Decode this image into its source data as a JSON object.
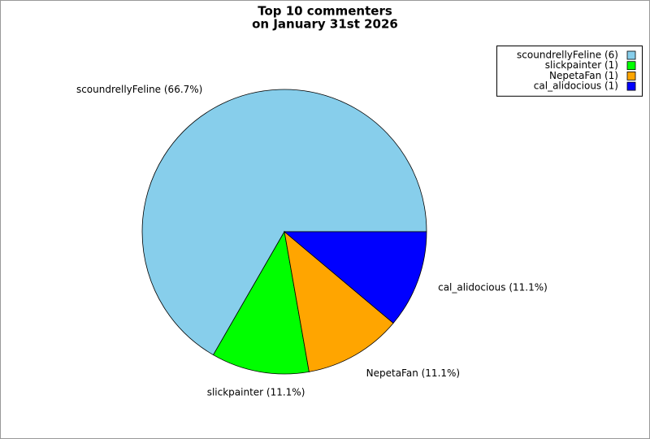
{
  "chart_data": {
    "type": "pie",
    "title": [
      "Top 10 commenters",
      "on January 31st 2026"
    ],
    "values": [
      6,
      1,
      1,
      1
    ],
    "value_labels": [
      "scoundrellyFeline (66.7%)",
      "slickpainter (11.1%)",
      "NepetaFan (11.1%)",
      "cal_alidocious (11.1%)"
    ],
    "legend_labels": [
      "scoundrellyFeline (6)",
      "slickpainter (1)",
      "NepetaFan (1)",
      "cal_alidocious (1)"
    ],
    "colors": [
      "#87ceeb",
      "#00ff00",
      "#ffa500",
      "#0000ff"
    ],
    "legend": "upper right"
  }
}
